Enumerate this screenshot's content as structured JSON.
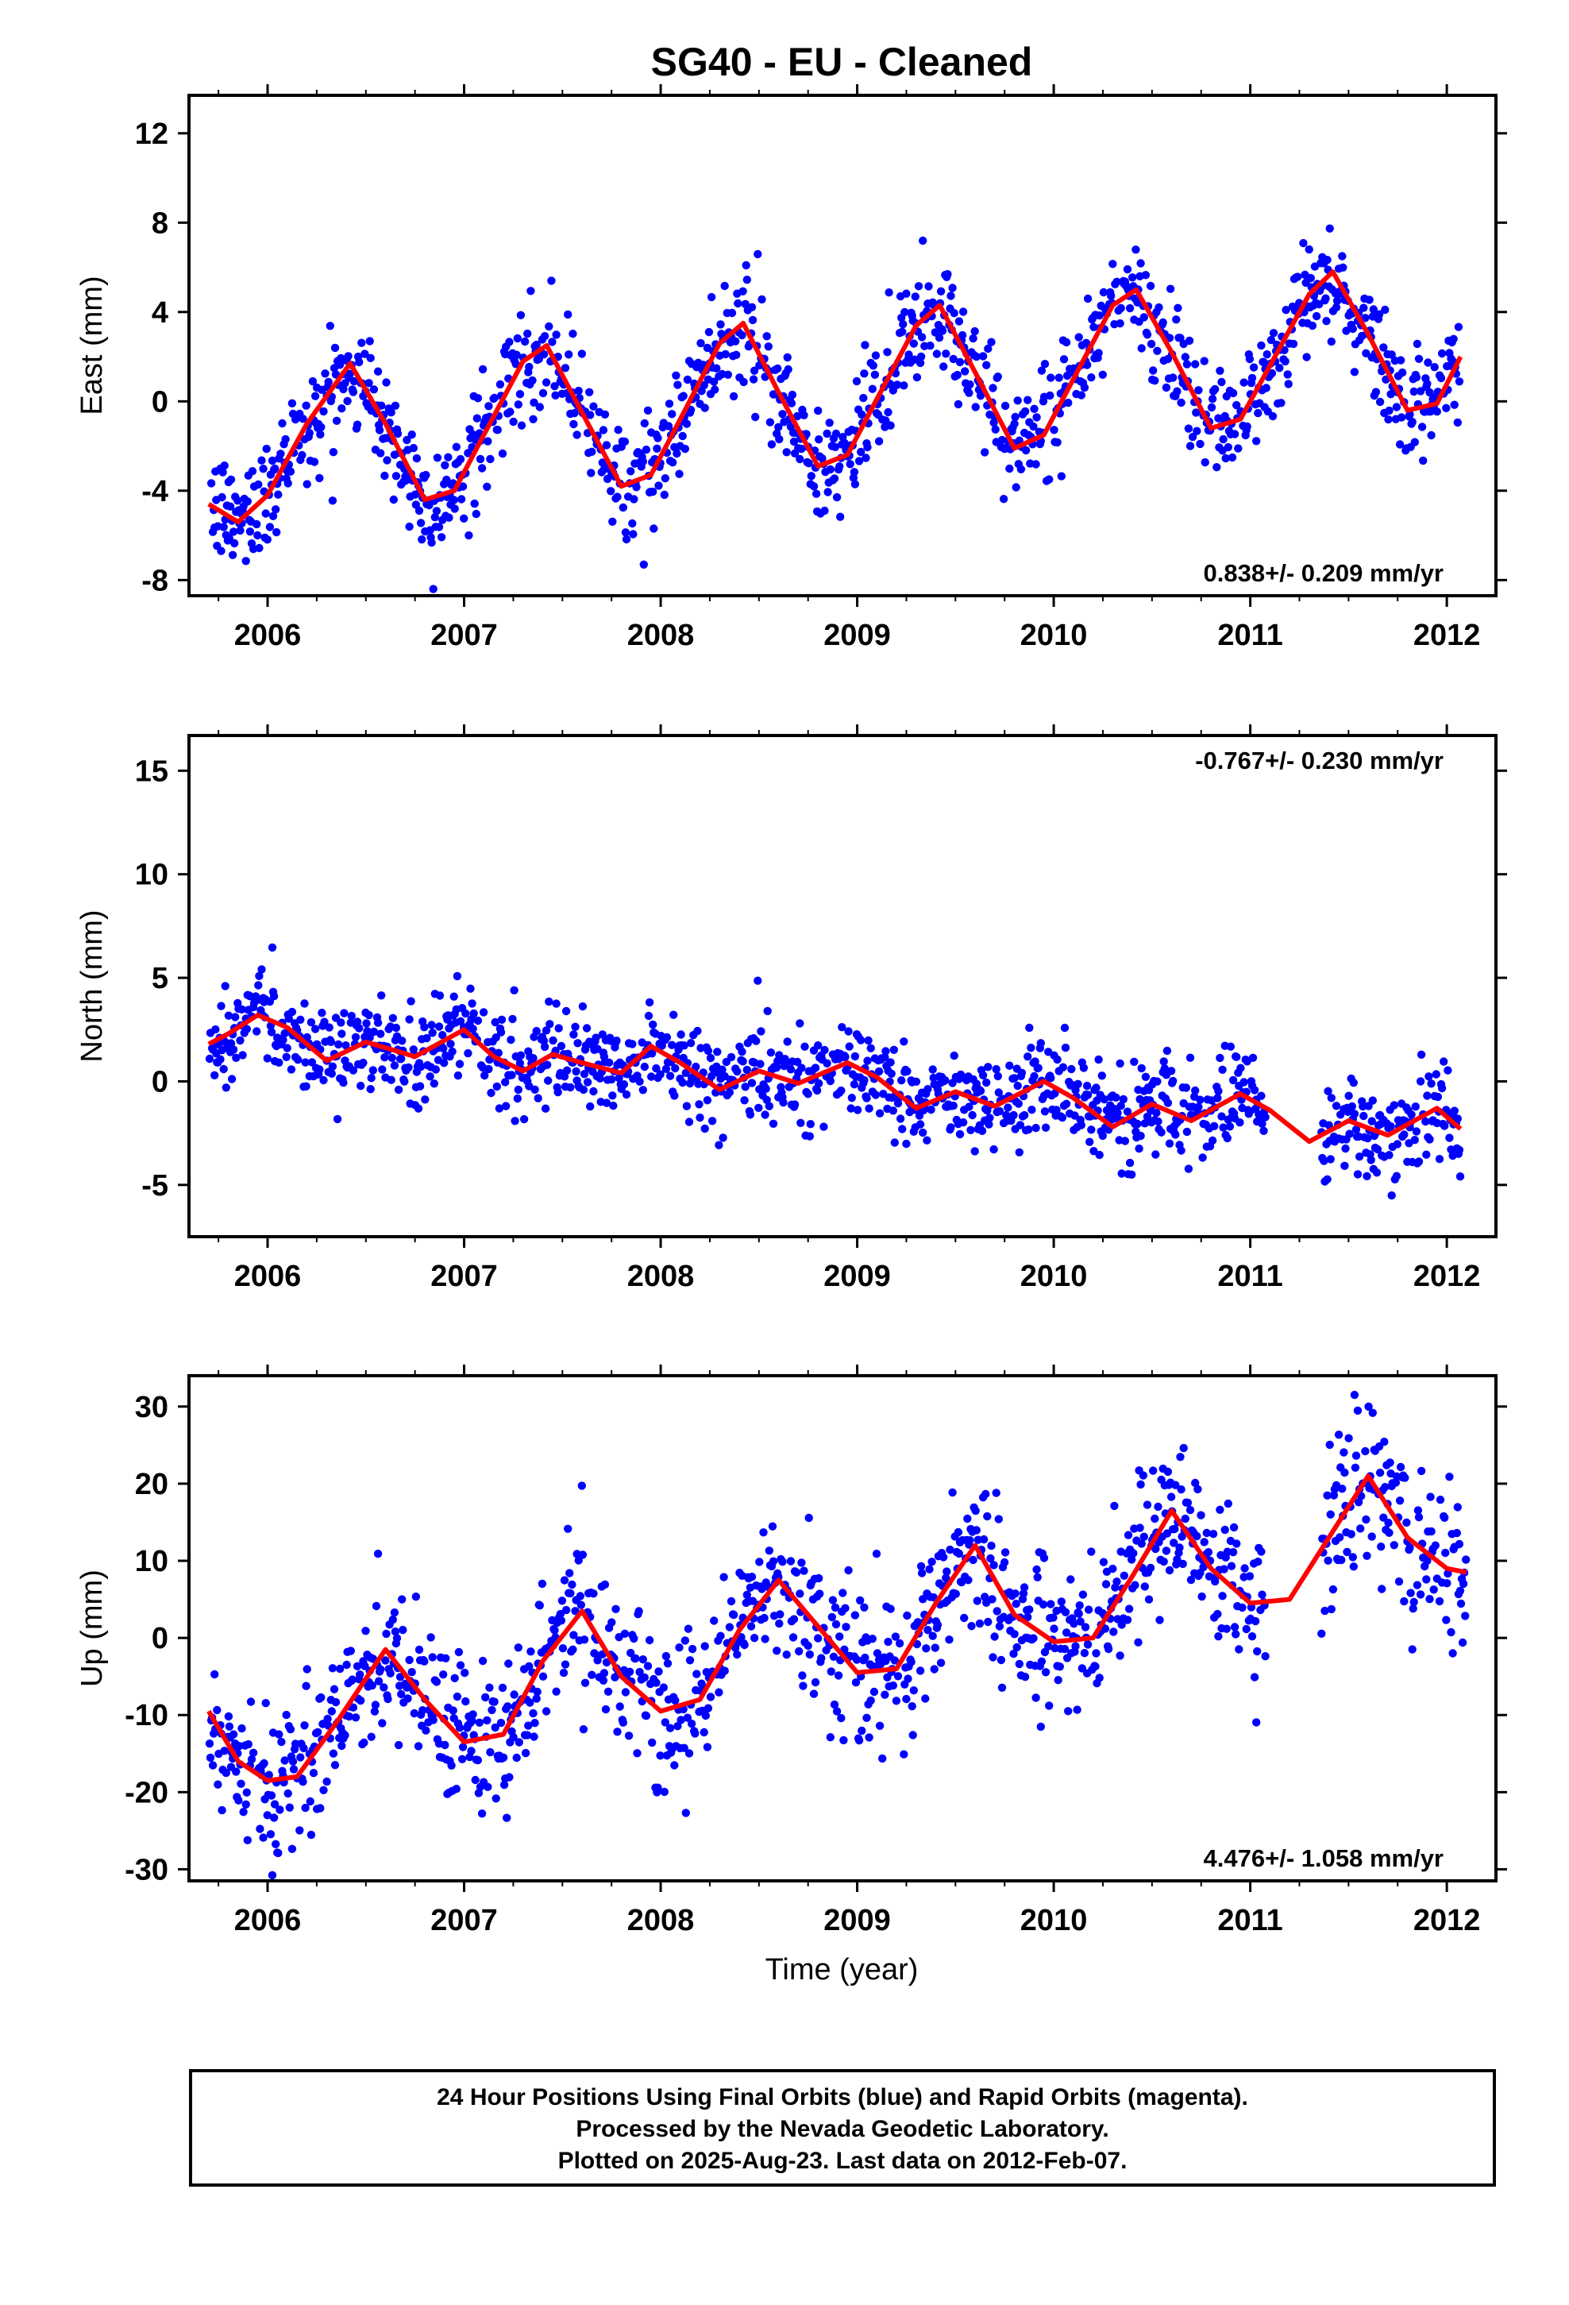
{
  "title": "SG40  - EU - Cleaned",
  "xlabel": "Time (year)",
  "caption": [
    "24 Hour Positions Using Final Orbits (blue) and Rapid Orbits (magenta).",
    "Processed by the Nevada Geodetic Laboratory.",
    "Plotted on 2025-Aug-23. Last data on 2012-Feb-07."
  ],
  "colors": {
    "points": "#0000ff",
    "fit": "#ff0000",
    "axes": "#000000"
  },
  "chart_data": [
    {
      "type": "scatter",
      "component": "east",
      "ylabel": "East (mm)",
      "rate_label": "0.838+/- 0.209 mm/yr",
      "rate_position": "bottom-right",
      "xlim": [
        2005.6,
        2012.25
      ],
      "ylim": [
        -8.7,
        13.7
      ],
      "yticks": [
        -8,
        -4,
        0,
        4,
        8,
        12
      ],
      "xticks": [
        2006,
        2007,
        2008,
        2009,
        2010,
        2011,
        2012
      ],
      "grid": false,
      "series": [
        {
          "kind": "fit",
          "x": [
            2005.7,
            2005.85,
            2006.0,
            2006.2,
            2006.42,
            2006.6,
            2006.8,
            2006.95,
            2007.1,
            2007.3,
            2007.42,
            2007.6,
            2007.8,
            2007.95,
            2008.1,
            2008.3,
            2008.42,
            2008.6,
            2008.8,
            2008.95,
            2009.1,
            2009.3,
            2009.42,
            2009.6,
            2009.8,
            2009.95,
            2010.1,
            2010.3,
            2010.42,
            2010.6,
            2010.8,
            2010.95,
            2011.1,
            2011.3,
            2011.42,
            2011.6,
            2011.8,
            2011.95,
            2012.07
          ],
          "y": [
            -4.6,
            -5.4,
            -4.2,
            -1.0,
            1.7,
            -1.0,
            -4.4,
            -4.0,
            -1.5,
            1.8,
            2.5,
            -0.5,
            -3.8,
            -3.3,
            -0.8,
            2.6,
            3.5,
            0.4,
            -2.9,
            -2.4,
            0.1,
            3.4,
            4.3,
            1.3,
            -2.1,
            -1.5,
            1.0,
            4.3,
            5.0,
            2.2,
            -1.2,
            -0.8,
            1.6,
            4.8,
            5.8,
            3.0,
            -0.4,
            -0.1,
            2.0
          ]
        }
      ]
    },
    {
      "type": "scatter",
      "component": "north",
      "ylabel": "North (mm)",
      "rate_label": "-0.767+/- 0.230 mm/yr",
      "rate_position": "top-right",
      "xlim": [
        2005.6,
        2012.25
      ],
      "ylim": [
        -7.5,
        16.7
      ],
      "yticks": [
        -5,
        0,
        5,
        10,
        15
      ],
      "xticks": [
        2006,
        2007,
        2008,
        2009,
        2010,
        2011,
        2012
      ],
      "grid": false,
      "series": [
        {
          "kind": "fit",
          "x": [
            2005.7,
            2005.8,
            2005.95,
            2006.1,
            2006.3,
            2006.5,
            2006.75,
            2007.0,
            2007.15,
            2007.3,
            2007.45,
            2007.6,
            2007.8,
            2007.95,
            2008.1,
            2008.3,
            2008.5,
            2008.7,
            2008.95,
            2009.1,
            2009.3,
            2009.5,
            2009.7,
            2009.95,
            2010.1,
            2010.3,
            2010.5,
            2010.7,
            2010.95,
            2011.1,
            2011.3,
            2011.5,
            2011.7,
            2011.95,
            2012.07
          ],
          "y": [
            1.8,
            2.3,
            3.2,
            2.6,
            1.0,
            1.9,
            1.2,
            2.5,
            1.2,
            0.5,
            1.3,
            0.9,
            0.4,
            1.7,
            0.9,
            -0.4,
            0.5,
            -0.1,
            0.9,
            0.2,
            -1.3,
            -0.5,
            -1.2,
            0.0,
            -0.8,
            -2.2,
            -1.1,
            -1.9,
            -0.6,
            -1.4,
            -2.9,
            -1.9,
            -2.6,
            -1.3,
            -2.3
          ]
        }
      ]
    },
    {
      "type": "scatter",
      "component": "up",
      "ylabel": "Up (mm)",
      "rate_label": "4.476+/- 1.058 mm/yr",
      "rate_position": "bottom-right",
      "xlim": [
        2005.6,
        2012.25
      ],
      "ylim": [
        -31.5,
        34.0
      ],
      "yticks": [
        -30,
        -20,
        -10,
        0,
        10,
        20,
        30
      ],
      "xticks": [
        2006,
        2007,
        2008,
        2009,
        2010,
        2011,
        2012
      ],
      "grid": false,
      "series": [
        {
          "kind": "fit",
          "x": [
            2005.7,
            2005.85,
            2006.0,
            2006.15,
            2006.35,
            2006.6,
            2006.8,
            2007.0,
            2007.2,
            2007.4,
            2007.6,
            2007.8,
            2008.0,
            2008.2,
            2008.4,
            2008.6,
            2008.8,
            2009.0,
            2009.2,
            2009.4,
            2009.6,
            2009.8,
            2010.0,
            2010.2,
            2010.4,
            2010.6,
            2010.8,
            2011.0,
            2011.2,
            2011.4,
            2011.6,
            2011.8,
            2012.0,
            2012.1
          ],
          "y": [
            -9.5,
            -16.0,
            -18.5,
            -18.0,
            -11.0,
            -1.5,
            -8.0,
            -13.5,
            -12.5,
            -3.0,
            3.5,
            -5.0,
            -9.5,
            -8.0,
            1.0,
            7.5,
            1.5,
            -4.5,
            -4.0,
            4.5,
            12.0,
            3.0,
            -0.5,
            0.0,
            8.0,
            16.5,
            9.0,
            4.5,
            5.0,
            13.0,
            21.0,
            13.0,
            9.0,
            8.5
          ]
        }
      ]
    }
  ]
}
